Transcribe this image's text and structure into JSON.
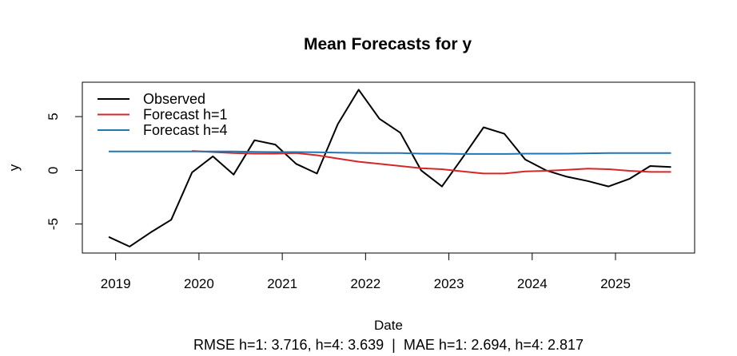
{
  "chart_data": {
    "type": "line",
    "title": "Mean Forecasts for y",
    "xlabel": "Date",
    "ylabel": "y",
    "caption": "RMSE h=1: 3.716, h=4: 3.639  |  MAE h=1: 2.694, h=4: 2.817",
    "x_ticks": [
      "2019",
      "2020",
      "2021",
      "2022",
      "2023",
      "2024",
      "2025"
    ],
    "y_ticks": [
      "-5",
      "0",
      "5"
    ],
    "xlim": [
      2018.6,
      2025.95
    ],
    "ylim": [
      -7.7,
      8.2
    ],
    "grid": false,
    "legend_position": "top-left",
    "x": [
      "2018-12",
      "2019-03",
      "2019-06",
      "2019-09",
      "2019-12",
      "2020-03",
      "2020-06",
      "2020-09",
      "2020-12",
      "2021-03",
      "2021-06",
      "2021-09",
      "2021-12",
      "2022-03",
      "2022-06",
      "2022-09",
      "2022-12",
      "2023-03",
      "2023-06",
      "2023-09",
      "2023-12",
      "2024-03",
      "2024-06",
      "2024-09",
      "2024-12",
      "2025-03",
      "2025-06",
      "2025-09"
    ],
    "series": [
      {
        "name": "Observed",
        "color": "#000000",
        "values": [
          -6.2,
          -7.1,
          -5.8,
          -4.6,
          -0.2,
          1.3,
          -0.4,
          2.8,
          2.4,
          0.6,
          -0.3,
          4.3,
          7.5,
          4.8,
          3.5,
          0.0,
          -1.5,
          1.2,
          4.0,
          3.4,
          1.0,
          0.0,
          -0.6,
          -1.0,
          -1.5,
          -0.8,
          0.4,
          0.3
        ]
      },
      {
        "name": "Forecast h=1",
        "color": "#d62728",
        "values": [
          null,
          null,
          null,
          null,
          1.8,
          1.7,
          1.6,
          1.55,
          1.55,
          1.6,
          1.4,
          1.1,
          0.8,
          0.6,
          0.4,
          0.2,
          0.1,
          -0.1,
          -0.3,
          -0.3,
          -0.1,
          -0.05,
          0.05,
          0.15,
          0.1,
          -0.05,
          -0.15,
          -0.15
        ]
      },
      {
        "name": "Forecast h=4",
        "color": "#1f77b4",
        "values": [
          1.75,
          1.75,
          1.75,
          1.75,
          1.75,
          1.75,
          1.75,
          1.72,
          1.7,
          1.7,
          1.68,
          1.65,
          1.62,
          1.6,
          1.6,
          1.55,
          1.55,
          1.52,
          1.52,
          1.52,
          1.55,
          1.55,
          1.55,
          1.58,
          1.6,
          1.6,
          1.6,
          1.6
        ]
      }
    ]
  }
}
